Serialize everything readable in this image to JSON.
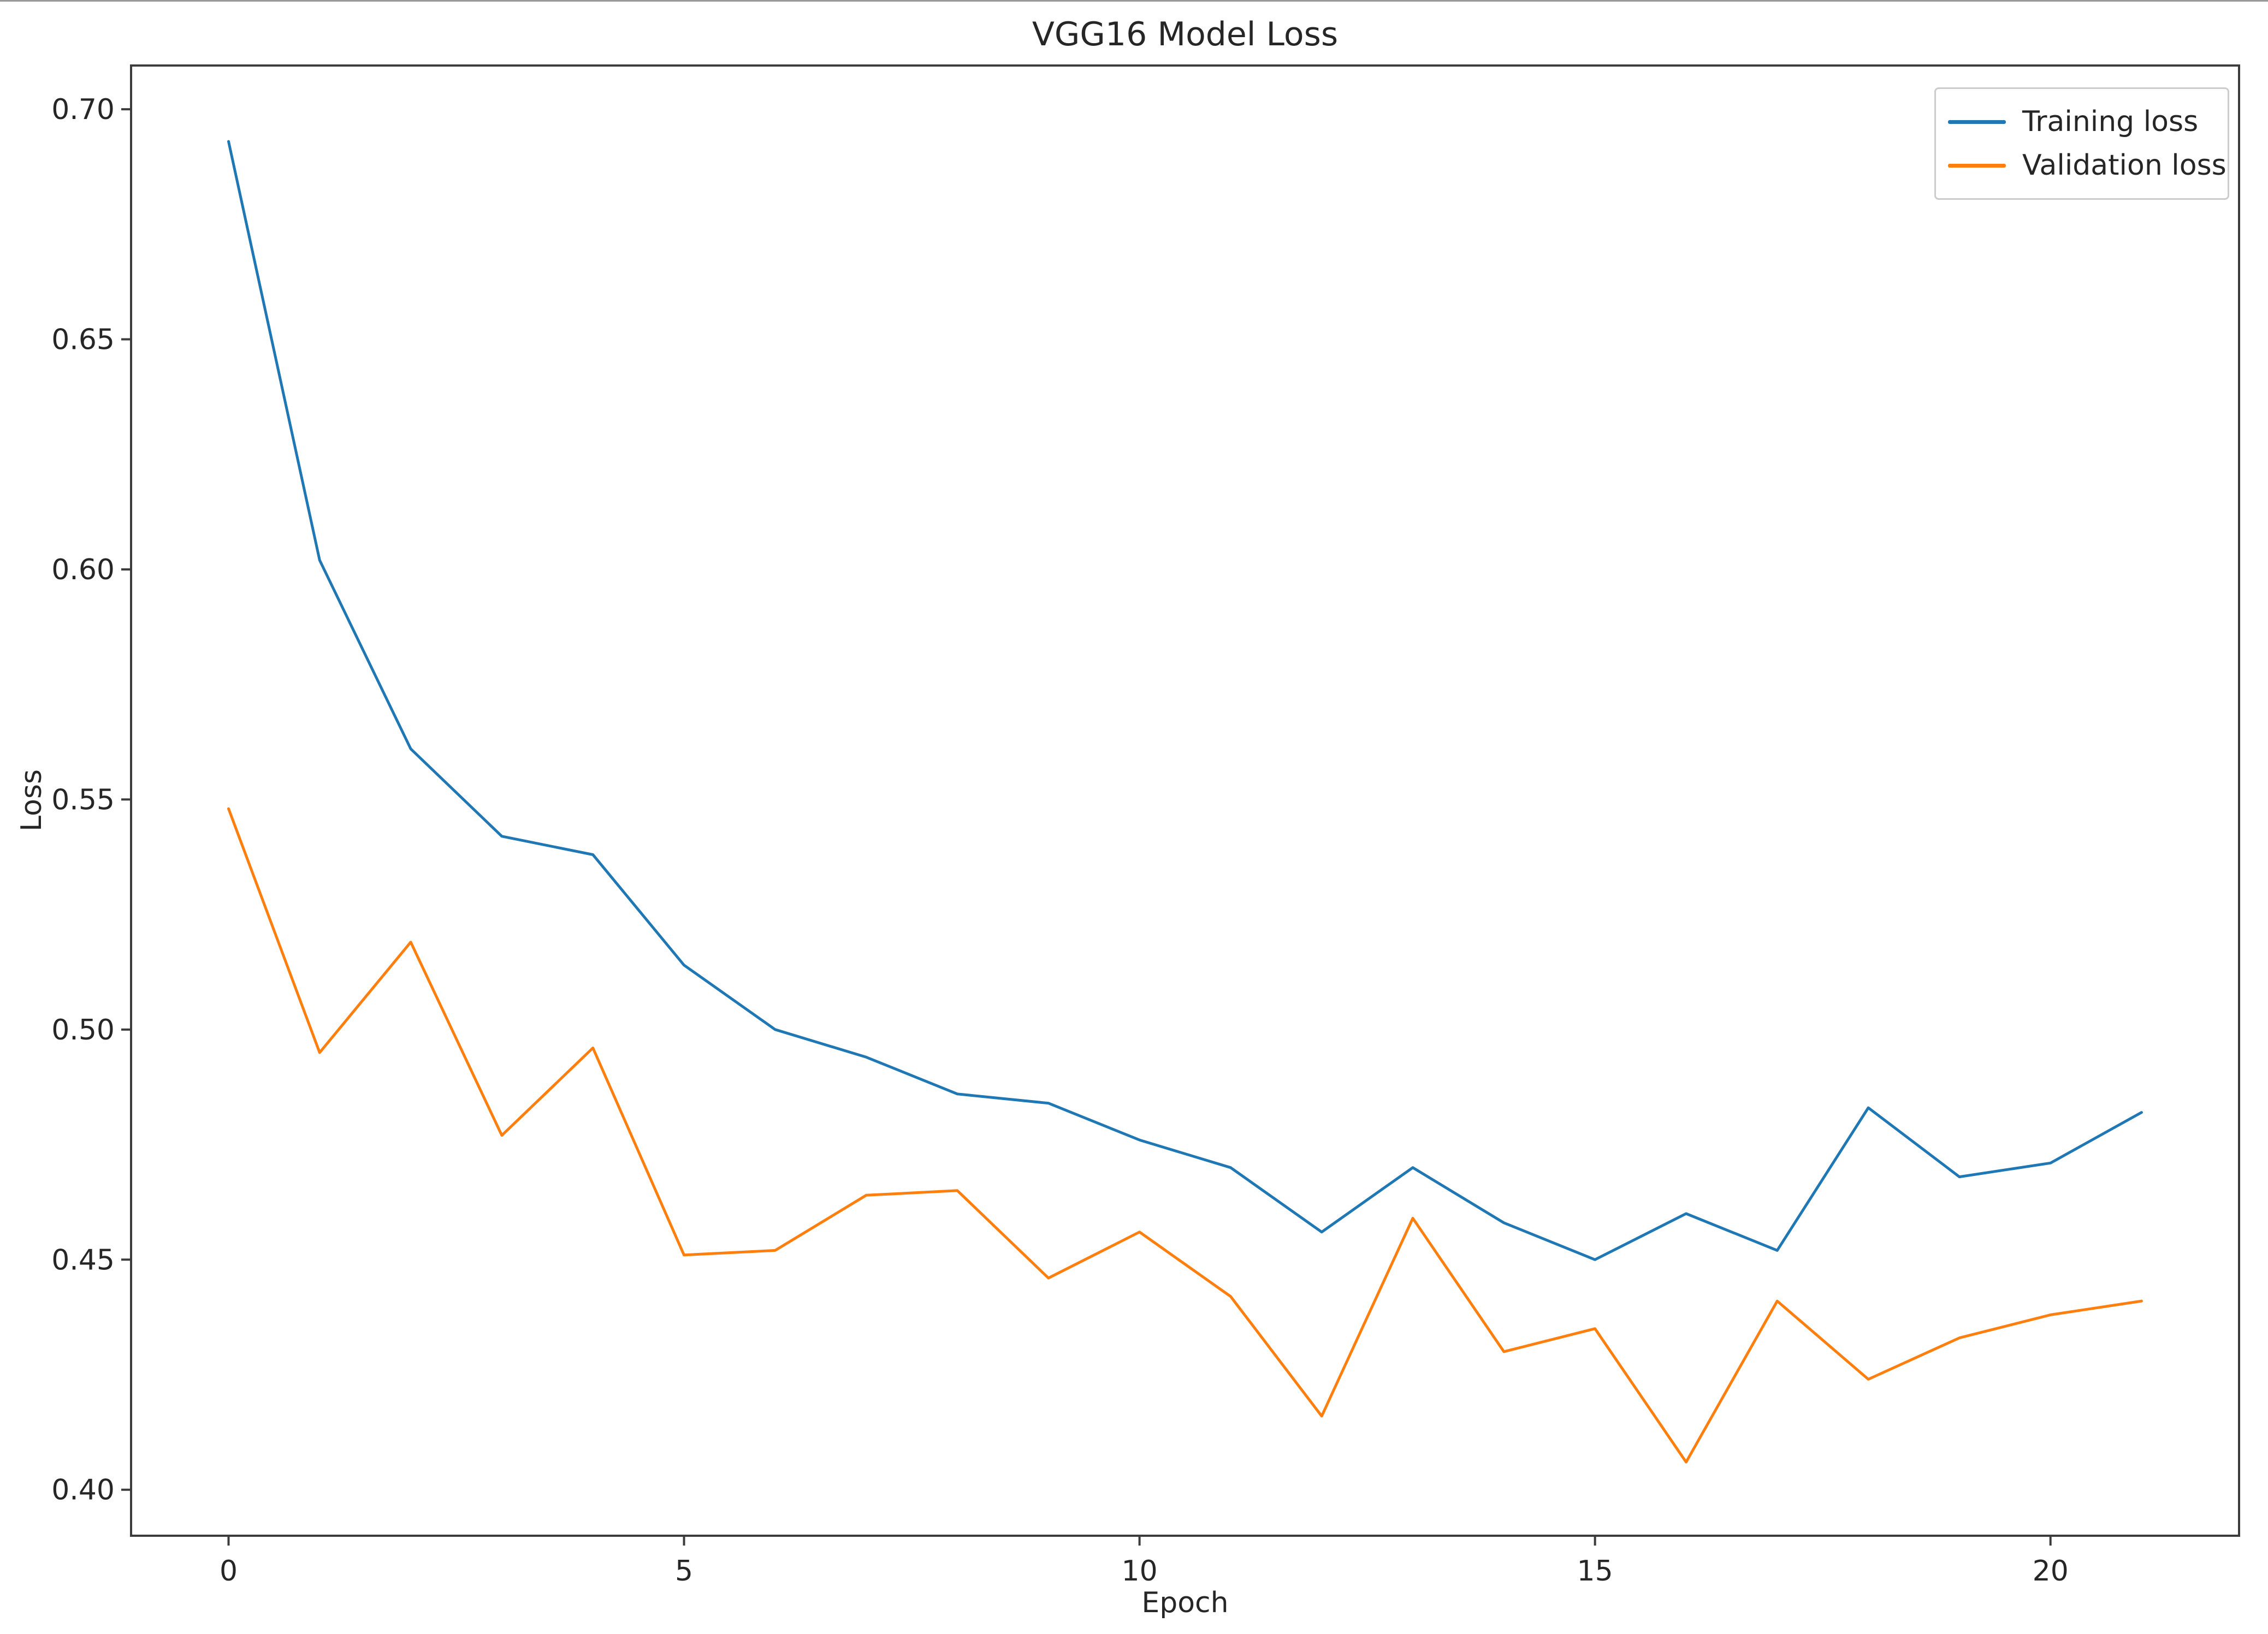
{
  "figure": {
    "title": "VGG16 Model Loss",
    "x_axis_label": "Epoch",
    "y_axis_label": "Loss"
  },
  "legend": {
    "position": "upper right",
    "items": [
      {
        "label": "Training loss",
        "color": "#1f77b4"
      },
      {
        "label": "Validation loss",
        "color": "#ff7f0e"
      }
    ]
  },
  "chart_data": {
    "type": "line",
    "title": "VGG16 Model Loss",
    "xlabel": "Epoch",
    "ylabel": "Loss",
    "grid": false,
    "legend_position": "upper right",
    "x": [
      0,
      1,
      2,
      3,
      4,
      5,
      6,
      7,
      8,
      9,
      10,
      11,
      12,
      13,
      14,
      15,
      16,
      17,
      18,
      19,
      20,
      21
    ],
    "series": [
      {
        "name": "Training loss",
        "color": "#1f77b4",
        "values": [
          0.693,
          0.602,
          0.561,
          0.542,
          0.538,
          0.514,
          0.5,
          0.494,
          0.486,
          0.484,
          0.476,
          0.47,
          0.456,
          0.47,
          0.458,
          0.45,
          0.46,
          0.452,
          0.483,
          0.468,
          0.471,
          0.482
        ]
      },
      {
        "name": "Validation loss",
        "color": "#ff7f0e",
        "values": [
          0.548,
          0.495,
          0.519,
          0.477,
          0.496,
          0.451,
          0.452,
          0.464,
          0.465,
          0.446,
          0.456,
          0.442,
          0.416,
          0.459,
          0.43,
          0.435,
          0.406,
          0.441,
          0.424,
          0.433,
          0.438,
          0.441
        ]
      }
    ],
    "x_ticks": [
      0,
      5,
      10,
      15,
      20
    ],
    "x_tick_labels": [
      "0",
      "5",
      "10",
      "15",
      "20"
    ],
    "y_ticks": [
      0.4,
      0.45,
      0.5,
      0.55,
      0.6,
      0.65,
      0.7
    ],
    "y_tick_labels": [
      "0.40",
      "0.45",
      "0.50",
      "0.55",
      "0.60",
      "0.65",
      "0.70"
    ],
    "xlim": [
      -1.07,
      22.07
    ],
    "ylim": [
      0.39,
      0.7095
    ]
  },
  "style": {
    "axis_color": "#3c3c3c",
    "tick_label_color": "#262626",
    "background": "#ffffff",
    "line_width": 5
  }
}
